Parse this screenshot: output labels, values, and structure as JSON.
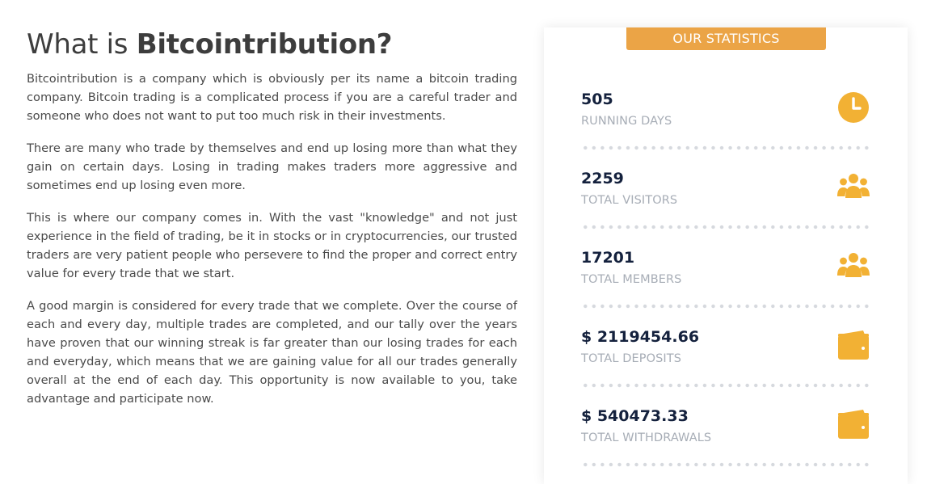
{
  "about": {
    "title_prefix": "What is ",
    "title_brand": "Bitcointribution?",
    "paragraphs": [
      "Bitcointribution is a company which is obviously per its name a bitcoin trading company. Bitcoin trading is a complicated process if you are a careful trader and someone who does not want to put too much risk in their investments.",
      "There are many who trade by themselves and end up losing more than what they gain on certain days. Losing in trading makes traders more aggressive and sometimes end up losing even more.",
      "This is where our company comes in. With the vast \"knowledge\" and not just experience in the field of trading, be it in stocks or in cryptocurrencies, our trusted traders are very patient people who persevere to find the proper and correct entry value for every trade that we start.",
      "A good margin is considered for every trade that we complete. Over the course of each and every day, multiple trades are completed, and our tally over the years have proven that our winning streak is far greater than our losing trades for each and everyday, which means that we are gaining value for all our trades generally overall at the end of each day. This opportunity is now available to you, take advantage and participate now."
    ]
  },
  "stats": {
    "header": "OUR STATISTICS",
    "accent_color": "#eba446",
    "icon_color": "#f2b134",
    "items": [
      {
        "value": "505",
        "label": "RUNNING DAYS",
        "icon": "clock-icon"
      },
      {
        "value": "2259",
        "label": "TOTAL VISITORS",
        "icon": "users-icon"
      },
      {
        "value": "17201",
        "label": "TOTAL MEMBERS",
        "icon": "users-icon"
      },
      {
        "value": "$ 2119454.66",
        "label": "TOTAL DEPOSITS",
        "icon": "wallet-icon"
      },
      {
        "value": "$ 540473.33",
        "label": "TOTAL WITHDRAWALS",
        "icon": "wallet-icon"
      }
    ]
  }
}
